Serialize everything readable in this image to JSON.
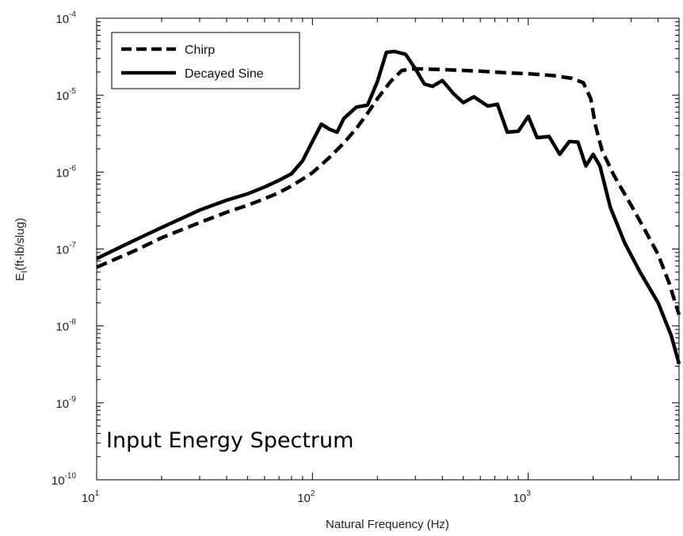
{
  "chart_data": {
    "type": "line",
    "title": "",
    "xlabel": "Natural Frequency (Hz)",
    "ylabel_main": "E",
    "ylabel_sub": "I",
    "ylabel_rest": "(ft-lb/slug)",
    "xscale": "log",
    "yscale": "log",
    "xlim": [
      10,
      5000
    ],
    "ylim": [
      1e-10,
      0.0001
    ],
    "x_ticks": [
      {
        "base": "10",
        "exp": "1",
        "value": 10
      },
      {
        "base": "10",
        "exp": "2",
        "value": 100
      },
      {
        "base": "10",
        "exp": "3",
        "value": 1000
      }
    ],
    "y_ticks": [
      {
        "base": "10",
        "exp": "-10",
        "value": 1e-10
      },
      {
        "base": "10",
        "exp": "-9",
        "value": 1e-09
      },
      {
        "base": "10",
        "exp": "-8",
        "value": 1e-08
      },
      {
        "base": "10",
        "exp": "-7",
        "value": 1e-07
      },
      {
        "base": "10",
        "exp": "-6",
        "value": 1e-06
      },
      {
        "base": "10",
        "exp": "-5",
        "value": 1e-05
      },
      {
        "base": "10",
        "exp": "-4",
        "value": 0.0001
      }
    ],
    "grid": false,
    "legend_position": "top-left",
    "annotation": "Input Energy Spectrum",
    "series": [
      {
        "name": "Chirp",
        "style": "dashed",
        "color": "#000000",
        "points": [
          [
            10,
            5.8e-08
          ],
          [
            15,
            9.5e-08
          ],
          [
            20,
            1.4e-07
          ],
          [
            30,
            2.2e-07
          ],
          [
            40,
            3e-07
          ],
          [
            50,
            3.7e-07
          ],
          [
            60,
            4.5e-07
          ],
          [
            70,
            5.4e-07
          ],
          [
            80,
            6.6e-07
          ],
          [
            90,
            8.1e-07
          ],
          [
            100,
            9.8e-07
          ],
          [
            120,
            1.55e-06
          ],
          [
            140,
            2.4e-06
          ],
          [
            160,
            3.7e-06
          ],
          [
            180,
            5.8e-06
          ],
          [
            200,
            9e-06
          ],
          [
            230,
            1.5e-05
          ],
          [
            260,
            2.1e-05
          ],
          [
            300,
            2.2e-05
          ],
          [
            400,
            2.15e-05
          ],
          [
            600,
            2.05e-05
          ],
          [
            800,
            1.95e-05
          ],
          [
            1000,
            1.9e-05
          ],
          [
            1300,
            1.8e-05
          ],
          [
            1600,
            1.65e-05
          ],
          [
            1800,
            1.45e-05
          ],
          [
            1950,
            9e-06
          ],
          [
            2050,
            4e-06
          ],
          [
            2200,
            1.9e-06
          ],
          [
            2500,
            9e-07
          ],
          [
            3000,
            3.7e-07
          ],
          [
            3500,
            1.7e-07
          ],
          [
            4000,
            8.5e-08
          ],
          [
            4500,
            3.6e-08
          ],
          [
            5000,
            1.4e-08
          ]
        ]
      },
      {
        "name": "Decayed Sine",
        "style": "solid",
        "color": "#000000",
        "points": [
          [
            10,
            7.5e-08
          ],
          [
            15,
            1.3e-07
          ],
          [
            20,
            1.9e-07
          ],
          [
            30,
            3.2e-07
          ],
          [
            40,
            4.3e-07
          ],
          [
            50,
            5.2e-07
          ],
          [
            60,
            6.4e-07
          ],
          [
            70,
            7.8e-07
          ],
          [
            80,
            9.5e-07
          ],
          [
            90,
            1.4e-06
          ],
          [
            100,
            2.5e-06
          ],
          [
            110,
            4.2e-06
          ],
          [
            120,
            3.6e-06
          ],
          [
            130,
            3.3e-06
          ],
          [
            140,
            5e-06
          ],
          [
            160,
            7e-06
          ],
          [
            180,
            7.4e-06
          ],
          [
            200,
            1.5e-05
          ],
          [
            220,
            3.6e-05
          ],
          [
            240,
            3.7e-05
          ],
          [
            270,
            3.4e-05
          ],
          [
            300,
            2.2e-05
          ],
          [
            330,
            1.4e-05
          ],
          [
            360,
            1.3e-05
          ],
          [
            400,
            1.55e-05
          ],
          [
            450,
            1.05e-05
          ],
          [
            500,
            8e-06
          ],
          [
            560,
            9.5e-06
          ],
          [
            650,
            7.2e-06
          ],
          [
            720,
            7.6e-06
          ],
          [
            800,
            3.3e-06
          ],
          [
            900,
            3.4e-06
          ],
          [
            1000,
            5.3e-06
          ],
          [
            1100,
            2.8e-06
          ],
          [
            1250,
            2.9e-06
          ],
          [
            1400,
            1.7e-06
          ],
          [
            1550,
            2.5e-06
          ],
          [
            1700,
            2.45e-06
          ],
          [
            1850,
            1.2e-06
          ],
          [
            2000,
            1.7e-06
          ],
          [
            2150,
            1.2e-06
          ],
          [
            2400,
            3.5e-07
          ],
          [
            2800,
            1.2e-07
          ],
          [
            3300,
            5e-08
          ],
          [
            4000,
            2e-08
          ],
          [
            4600,
            7.5e-09
          ],
          [
            5000,
            3.2e-09
          ]
        ]
      }
    ]
  }
}
